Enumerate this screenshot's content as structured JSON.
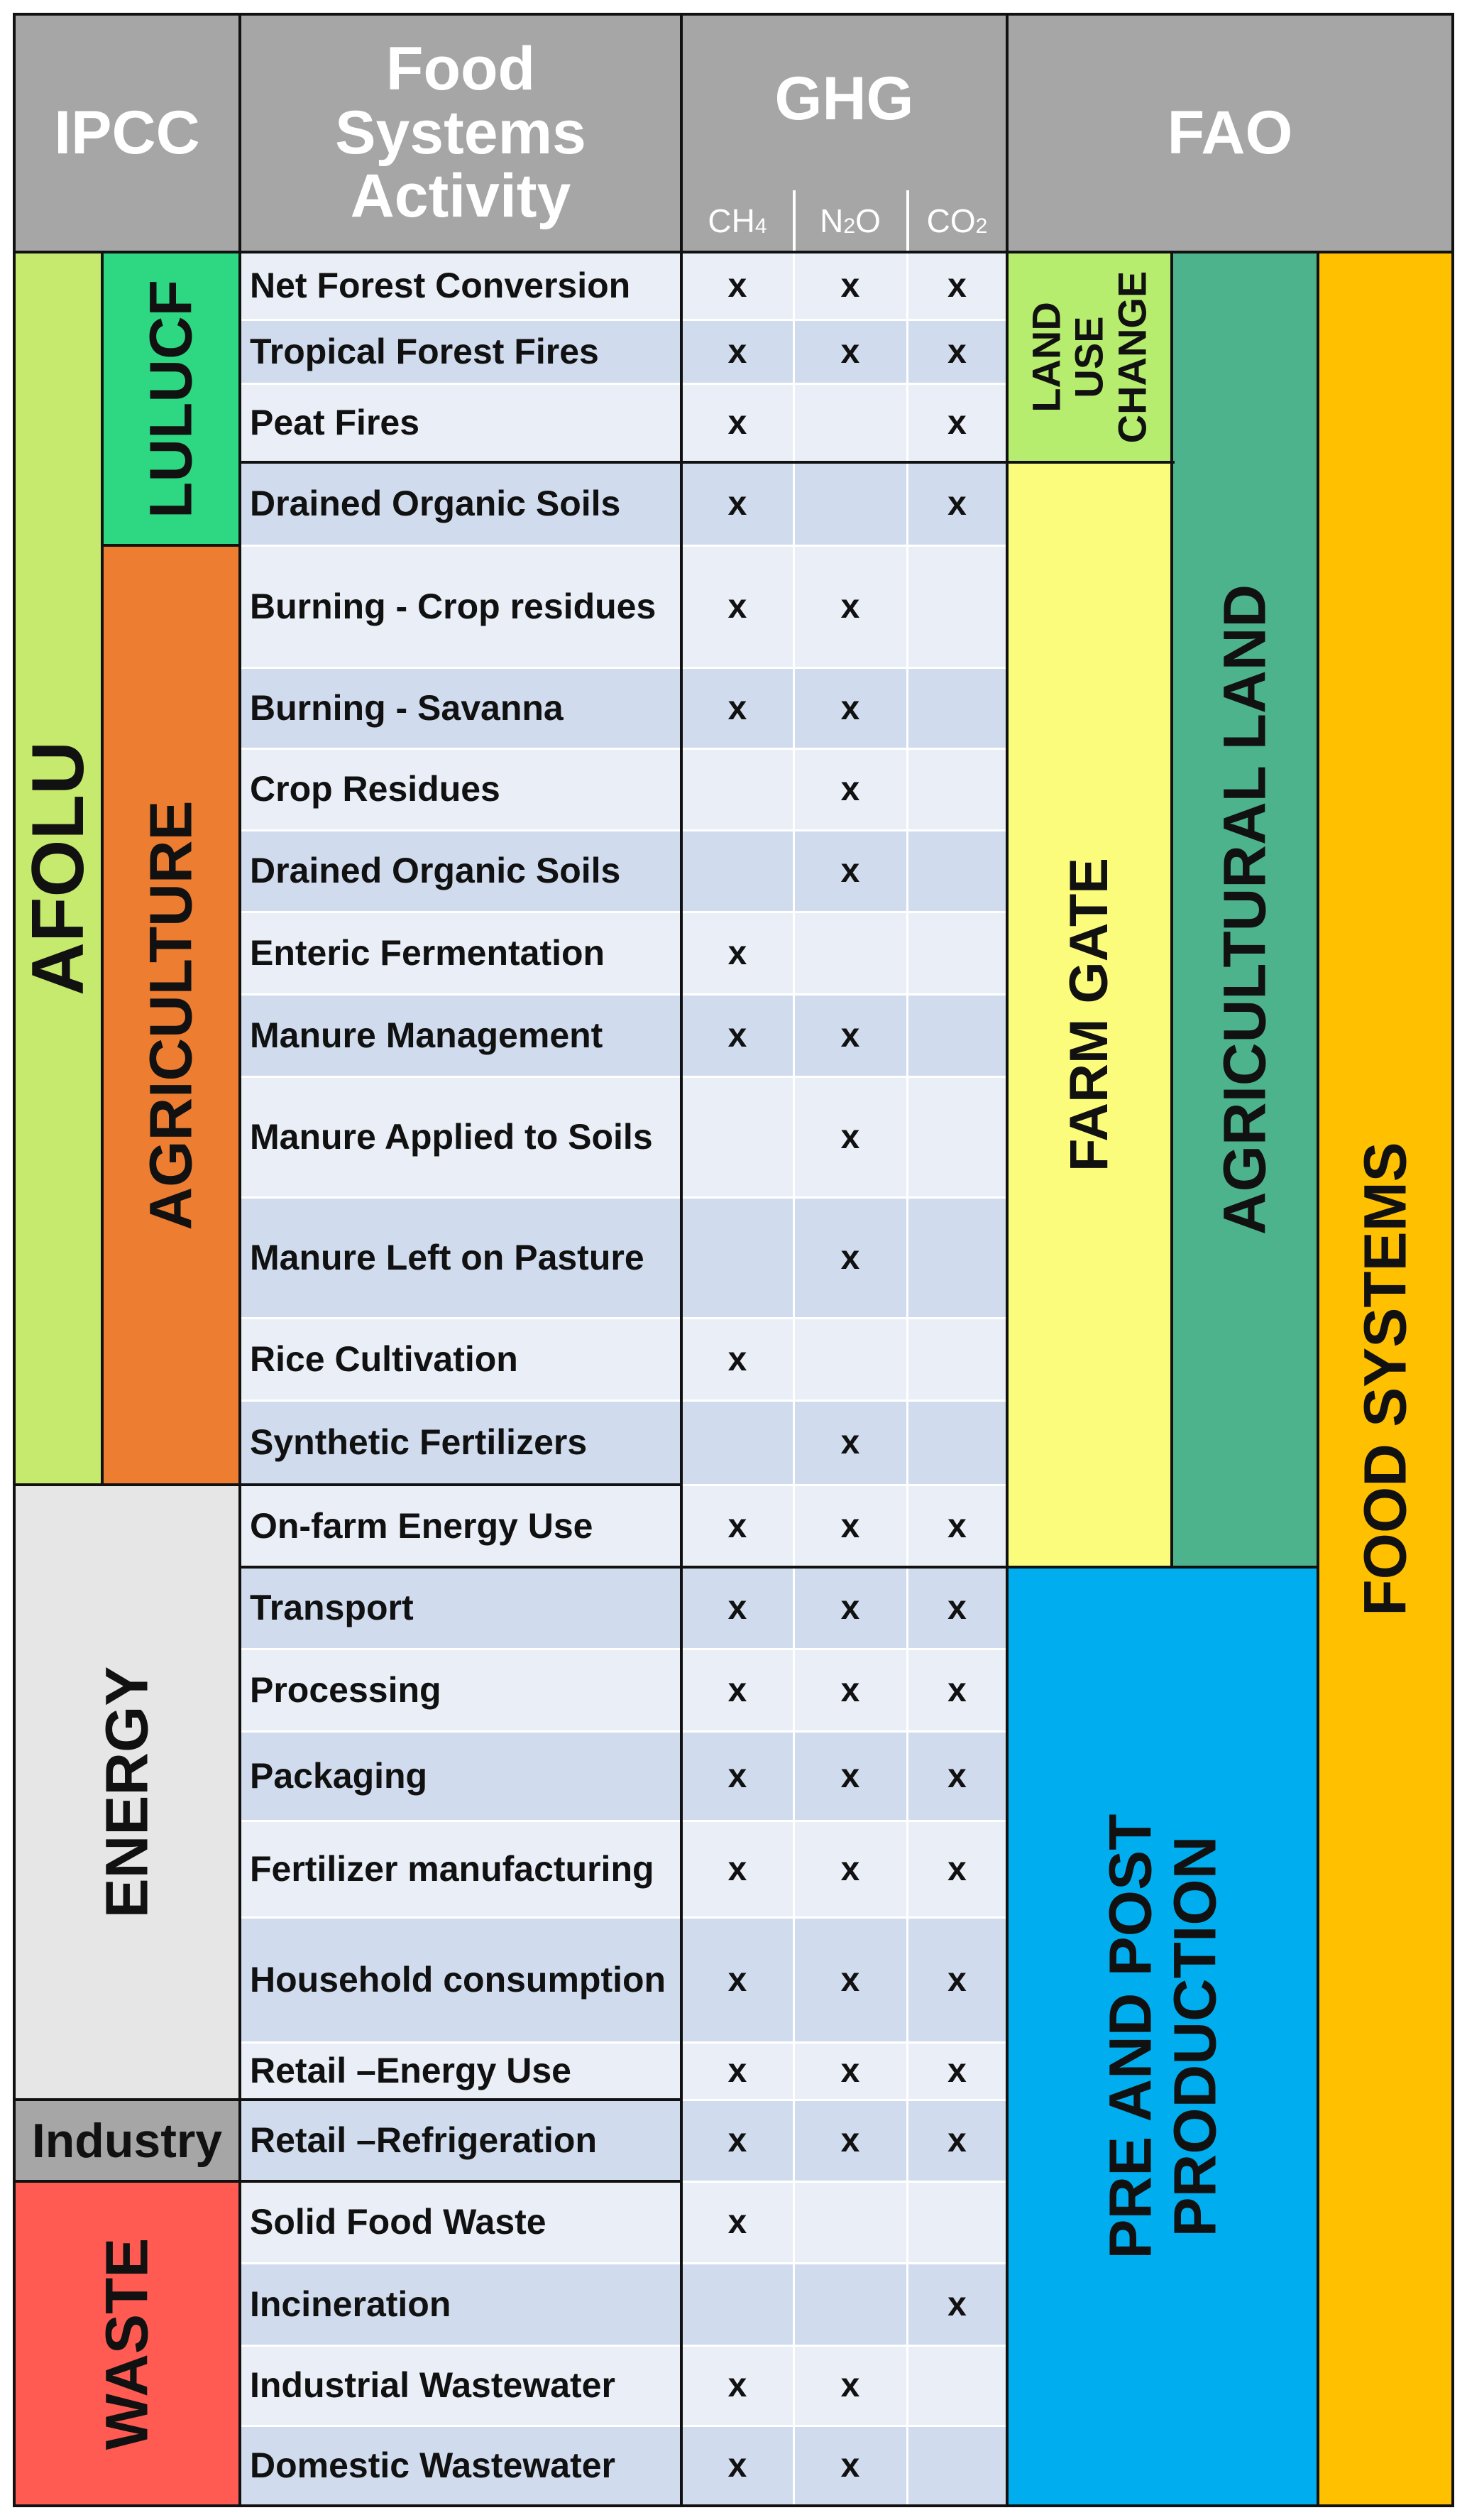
{
  "headers": {
    "ipcc": "IPCC",
    "activity_line1": "Food",
    "activity_line2": "Systems",
    "activity_line3": "Activity",
    "ghg": "GHG",
    "fao": "FAO",
    "gases": [
      {
        "base": "CH",
        "sub": "4",
        "tail": ""
      },
      {
        "base": "N",
        "sub": "2",
        "tail": "O"
      },
      {
        "base": "CO",
        "sub": "2",
        "tail": ""
      }
    ]
  },
  "ipcc_groups": {
    "afolu": "AFOLU",
    "lulucf": "LULUCF",
    "agriculture": "AGRICULTURE",
    "energy": "ENERGY",
    "industry": "Industry",
    "waste": "WASTE"
  },
  "fao_groups": {
    "land_use_change_1": "LAND",
    "land_use_change_2": "USE",
    "land_use_change_3": "CHANGE",
    "farm_gate": "FARM GATE",
    "agricultural_land": "AGRICULTURAL LAND",
    "food_systems": "FOOD SYSTEMS",
    "pre_post_1": "PRE AND POST",
    "pre_post_2": "PRODUCTION"
  },
  "colors": {
    "header_gray": "#a6a6a6",
    "afolu": "#c5ea6e",
    "lulucf": "#2ed882",
    "agriculture": "#ed7d31",
    "energy": "#e6e6e6",
    "industry": "#a6a6a6",
    "waste": "#ff5b53",
    "land_use_change": "#b6ed6e",
    "farm_gate": "#fcfc7c",
    "agricultural_land": "#4cb38d",
    "food_systems": "#ffc000",
    "pre_post_production": "#00aeef",
    "row_light": "#e9eef7",
    "row_dark": "#d0dcee"
  },
  "rows": [
    {
      "activity": "Net Forest Conversion",
      "ch4": "x",
      "n2o": "x",
      "co2": "x"
    },
    {
      "activity": "Tropical Forest Fires",
      "ch4": "x",
      "n2o": "x",
      "co2": "x"
    },
    {
      "activity": "Peat Fires",
      "ch4": "x",
      "n2o": "",
      "co2": "x"
    },
    {
      "activity": "Drained Organic Soils",
      "ch4": "x",
      "n2o": "",
      "co2": "x"
    },
    {
      "activity": "Burning - Crop residues",
      "ch4": "x",
      "n2o": "x",
      "co2": ""
    },
    {
      "activity": "Burning - Savanna",
      "ch4": "x",
      "n2o": "x",
      "co2": ""
    },
    {
      "activity": "Crop Residues",
      "ch4": "",
      "n2o": "x",
      "co2": ""
    },
    {
      "activity": "Drained Organic Soils",
      "ch4": "",
      "n2o": "x",
      "co2": ""
    },
    {
      "activity": "Enteric Fermentation",
      "ch4": "x",
      "n2o": "",
      "co2": ""
    },
    {
      "activity": "Manure Management",
      "ch4": "x",
      "n2o": "x",
      "co2": ""
    },
    {
      "activity": "Manure Applied to Soils",
      "ch4": "",
      "n2o": "x",
      "co2": ""
    },
    {
      "activity": "Manure Left on Pasture",
      "ch4": "",
      "n2o": "x",
      "co2": ""
    },
    {
      "activity": "Rice Cultivation",
      "ch4": "x",
      "n2o": "",
      "co2": ""
    },
    {
      "activity": "Synthetic Fertilizers",
      "ch4": "",
      "n2o": "x",
      "co2": ""
    },
    {
      "activity": "On-farm Energy Use",
      "ch4": "x",
      "n2o": "x",
      "co2": "x"
    },
    {
      "activity": "Transport",
      "ch4": "x",
      "n2o": "x",
      "co2": "x"
    },
    {
      "activity": "Processing",
      "ch4": "x",
      "n2o": "x",
      "co2": "x"
    },
    {
      "activity": "Packaging",
      "ch4": "x",
      "n2o": "x",
      "co2": "x"
    },
    {
      "activity": "Fertilizer manufacturing",
      "ch4": "x",
      "n2o": "x",
      "co2": "x"
    },
    {
      "activity": "Household consumption",
      "ch4": "x",
      "n2o": "x",
      "co2": "x"
    },
    {
      "activity": "Retail –Energy Use",
      "ch4": "x",
      "n2o": "x",
      "co2": "x"
    },
    {
      "activity": "Retail –Refrigeration",
      "ch4": "x",
      "n2o": "x",
      "co2": "x"
    },
    {
      "activity": "Solid Food Waste",
      "ch4": "x",
      "n2o": "",
      "co2": ""
    },
    {
      "activity": "Incineration",
      "ch4": "",
      "n2o": "",
      "co2": "x"
    },
    {
      "activity": "Industrial Wastewater",
      "ch4": "x",
      "n2o": "x",
      "co2": ""
    },
    {
      "activity": "Domestic Wastewater",
      "ch4": "x",
      "n2o": "x",
      "co2": ""
    }
  ]
}
